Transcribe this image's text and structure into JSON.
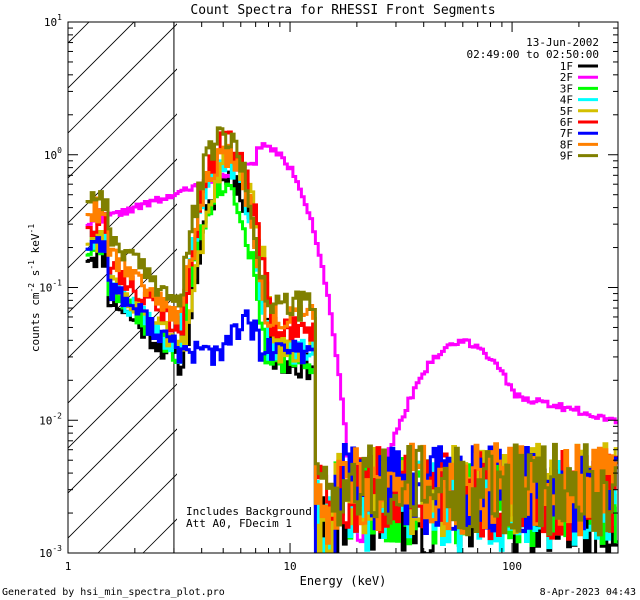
{
  "chart_data": {
    "type": "line",
    "title": "Count Spectra for RHESSI Front Segments",
    "xlabel": "Energy (keV)",
    "ylabel": "counts cm-2 s-1 keV-1",
    "xscale": "log",
    "yscale": "log",
    "xlim": [
      1,
      300
    ],
    "ylim": [
      0.001,
      10
    ],
    "x_ticks": [
      {
        "value": 1,
        "label": "1"
      },
      {
        "value": 10,
        "label": "10"
      },
      {
        "value": 100,
        "label": "100"
      }
    ],
    "y_ticks": [
      {
        "value": 0.001,
        "base": "10",
        "exp": "-3"
      },
      {
        "value": 0.01,
        "base": "10",
        "exp": "-2"
      },
      {
        "value": 0.1,
        "base": "10",
        "exp": "-1"
      },
      {
        "value": 1,
        "base": "10",
        "exp": "0"
      },
      {
        "value": 10,
        "base": "10",
        "exp": "1"
      }
    ],
    "date": "13-Jun-2002",
    "time_range": "02:49:00 to 02:50:00",
    "annotations": [
      "Includes Background",
      "Att A0, FDecim 1"
    ],
    "shaded_region": {
      "x_start": 1,
      "x_end": 3
    },
    "series": [
      {
        "name": "1F",
        "color": "#000000",
        "peak": 0.7,
        "peak_e": 5.3,
        "low": 0.09,
        "tail": 0.002,
        "seed": 11
      },
      {
        "name": "2F",
        "color": "#ff00ff",
        "peak": 1.18,
        "peak_e": 6.8,
        "low": 0.3,
        "tail": 0.01,
        "seed": 22
      },
      {
        "name": "3F",
        "color": "#00ff00",
        "peak": 0.62,
        "peak_e": 5.0,
        "low": 0.1,
        "tail": 0.0025,
        "seed": 33
      },
      {
        "name": "4F",
        "color": "#00ffff",
        "peak": 0.95,
        "peak_e": 5.0,
        "low": 0.11,
        "tail": 0.0022,
        "seed": 44
      },
      {
        "name": "5F",
        "color": "#d4c000",
        "peak": 0.9,
        "peak_e": 5.4,
        "low": 0.12,
        "tail": 0.003,
        "seed": 55
      },
      {
        "name": "6F",
        "color": "#ff0000",
        "peak": 1.25,
        "peak_e": 5.2,
        "low": 0.16,
        "tail": 0.0028,
        "seed": 66
      },
      {
        "name": "7F",
        "color": "#0000ff",
        "peak": 0.055,
        "peak_e": 6.2,
        "low": 0.11,
        "tail": 0.003,
        "seed": 77
      },
      {
        "name": "8F",
        "color": "#ff8000",
        "peak": 1.05,
        "peak_e": 5.1,
        "low": 0.2,
        "tail": 0.003,
        "seed": 88
      },
      {
        "name": "9F",
        "color": "#808000",
        "peak": 1.38,
        "peak_e": 5.0,
        "low": 0.25,
        "tail": 0.003,
        "seed": 99
      }
    ]
  },
  "footer": {
    "left": "Generated by hsi_min_spectra_plot.pro",
    "right": "8-Apr-2023 04:43"
  }
}
